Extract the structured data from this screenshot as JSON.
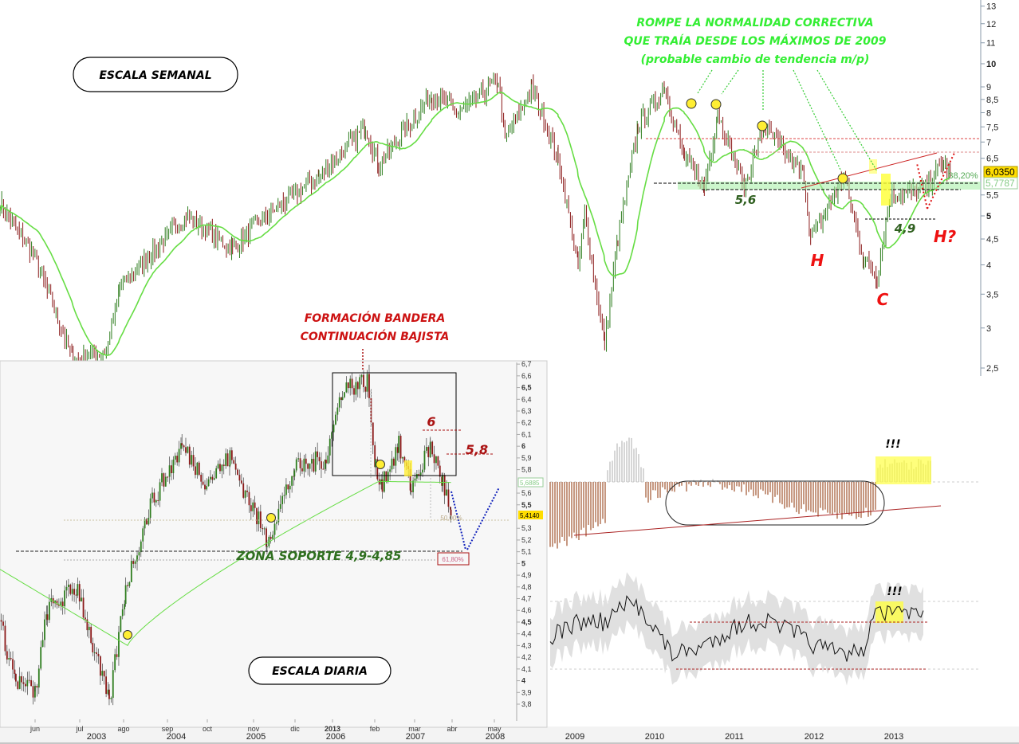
{
  "chart_data": [
    {
      "type": "candlestick",
      "title": "",
      "scale": "log",
      "ylim": [
        2.4,
        13.5
      ],
      "yticks": [
        "13",
        "12",
        "11",
        "10",
        "9",
        "8,5",
        "8",
        "7,5",
        "7",
        "6,5",
        "5,5",
        "5",
        "4,5",
        "4",
        "3,5",
        "3",
        "2,5"
      ],
      "xticks": [
        "2003",
        "2004",
        "2005",
        "2006",
        "2007",
        "2008",
        "2009",
        "2010",
        "2011",
        "2012",
        "2013"
      ],
      "price_points": [
        [
          "2001-04",
          5.3
        ],
        [
          "2001-09",
          4.2
        ],
        [
          "2002-03",
          2.6
        ],
        [
          "2002-08",
          2.7
        ],
        [
          "2002-10",
          3.6
        ],
        [
          "2003-08",
          5.0
        ],
        [
          "2004-03",
          4.3
        ],
        [
          "2004-08",
          5.0
        ],
        [
          "2005-04",
          6.0
        ],
        [
          "2005-11",
          7.5
        ],
        [
          "2006-01",
          6.3
        ],
        [
          "2006-09",
          8.7
        ],
        [
          "2007-01",
          8.0
        ],
        [
          "2007-07",
          9.3
        ],
        [
          "2007-08",
          7.0
        ],
        [
          "2007-12",
          9.0
        ],
        [
          "2008-04",
          6.5
        ],
        [
          "2008-07",
          4.0
        ],
        [
          "2008-08",
          5.0
        ],
        [
          "2008-11",
          2.8
        ],
        [
          "2009-01",
          4.5
        ],
        [
          "2009-04",
          7.5
        ],
        [
          "2009-08",
          9.0
        ],
        [
          "2009-11",
          6.5
        ],
        [
          "2010-02",
          5.7
        ],
        [
          "2010-04",
          8.0
        ],
        [
          "2010-08",
          5.7
        ],
        [
          "2010-11",
          7.5
        ],
        [
          "2011-05",
          6.0
        ],
        [
          "2011-06",
          4.5
        ],
        [
          "2011-08",
          5.0
        ],
        [
          "2011-11",
          6.0
        ],
        [
          "2012-02",
          4.1
        ],
        [
          "2012-04",
          3.8
        ],
        [
          "2012-06",
          5.5
        ],
        [
          "2012-11",
          5.6
        ],
        [
          "2013-02",
          6.4
        ],
        [
          "2013-03",
          6.035
        ]
      ],
      "last_price": "6,0350",
      "moving_average_value": "5,7787",
      "fib_label": "38,20%",
      "colors": {
        "up": "#2e7d1e",
        "down": "#8b1a1a",
        "moving_average": "#66dd44",
        "last_price_badge": "#ffdd00"
      }
    },
    {
      "type": "candlestick",
      "title": "",
      "scale": "linear",
      "ylim": [
        3.75,
        6.75
      ],
      "yticks": [
        "6,7",
        "6,6",
        "6,5",
        "6,4",
        "6,3",
        "6,2",
        "6,1",
        "6",
        "5,9",
        "5,8",
        "5,6",
        "5,5",
        "5,3",
        "5,2",
        "5,1",
        "5",
        "4,9",
        "4,8",
        "4,7",
        "4,6",
        "4,5",
        "4,4",
        "4,3",
        "4,2",
        "4,1",
        "4",
        "3,9",
        "3,8"
      ],
      "xticks": [
        "jun",
        "jul",
        "ago",
        "sep",
        "oct",
        "nov",
        "dic",
        "2013",
        "feb",
        "mar",
        "abr",
        "may"
      ],
      "price_points": [
        [
          "2012-05-06",
          4.5
        ],
        [
          "2012-05-18",
          4.0
        ],
        [
          "2012-06-01",
          3.9
        ],
        [
          "2012-06-10",
          4.6
        ],
        [
          "2012-07-02",
          4.8
        ],
        [
          "2012-07-13",
          4.3
        ],
        [
          "2012-07-25",
          3.8
        ],
        [
          "2012-08-06",
          4.8
        ],
        [
          "2012-08-24",
          5.5
        ],
        [
          "2012-09-16",
          6.0
        ],
        [
          "2012-10-04",
          5.7
        ],
        [
          "2012-10-21",
          5.9
        ],
        [
          "2012-11-17",
          5.2
        ],
        [
          "2012-12-07",
          5.8
        ],
        [
          "2012-12-30",
          5.9
        ],
        [
          "2013-01-11",
          6.5
        ],
        [
          "2013-01-29",
          6.55
        ],
        [
          "2013-02-04",
          5.8
        ],
        [
          "2013-02-09",
          5.7
        ],
        [
          "2013-02-21",
          6.0
        ],
        [
          "2013-03-02",
          5.65
        ],
        [
          "2013-03-16",
          6.0
        ],
        [
          "2013-03-25",
          5.7
        ],
        [
          "2013-03-31",
          5.41
        ]
      ],
      "last_price": "5,4140",
      "moving_average_value": "5,6885",
      "fib_labels": [
        "50,00%",
        "61,80%"
      ]
    }
  ],
  "annotations": {
    "weekly_scale": "ESCALA SEMANAL",
    "daily_scale": "ESCALA DIARIA",
    "breakout_lines": [
      "ROMPE LA NORMALIDAD CORRECTIVA",
      "QUE TRAÍA DESDE LOS MÁXIMOS DE 2009",
      "(probable cambio de tendencia m/p)"
    ],
    "flag_lines": [
      "FORMACIÓN BANDERA",
      "CONTINUACIÓN BAJISTA"
    ],
    "level_56": "5,6",
    "level_49": "4,9",
    "h_left": "H",
    "c_label": "C",
    "h_right": "H?",
    "level_6": "6",
    "level_58": "5,8",
    "support_zone": "ZONA SOPORTE 4,9-4,85",
    "alert_hist": "!!!",
    "alert_osc": "!!!"
  }
}
